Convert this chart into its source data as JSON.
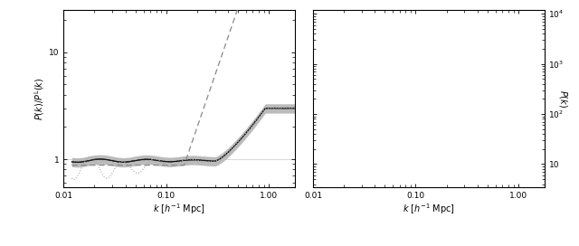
{
  "left_xlim": [
    0.012,
    1.8
  ],
  "left_ylim": [
    0.55,
    25.0
  ],
  "right_xlim": [
    0.012,
    1.8
  ],
  "right_ylim": [
    3.5,
    12000.0
  ],
  "xticks": [
    0.01,
    0.1,
    1.0
  ],
  "xticklabels": [
    "0.01",
    "0.10",
    "1.00"
  ],
  "left_yticks": [
    1,
    10
  ],
  "left_yticklabels": [
    "1",
    "10"
  ],
  "right_yticks": [
    10,
    100,
    1000,
    10000
  ],
  "right_yticklabels": [
    "10",
    "10$^2$",
    "10$^3$",
    "10$^4$"
  ],
  "xlabel": "$k$ $[h^{-1}$ Mpc$]$",
  "ylabel_left": "$P(k)/P^{\\rm L}(k)$",
  "ylabel_right": "$P(k)$",
  "band_colors": [
    "#bbbbbb",
    "#999999",
    "#777777",
    "#555555"
  ],
  "band_scales": [
    0.1,
    0.065,
    0.038,
    0.018
  ],
  "median_color": "#111111",
  "dashed_color": "#888888",
  "dotted_color": "#aaaaaa"
}
